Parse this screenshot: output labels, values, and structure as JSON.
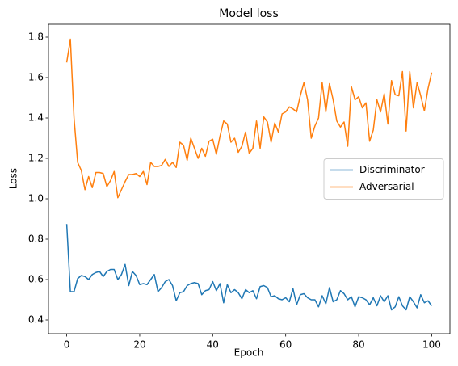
{
  "chart_data": {
    "type": "line",
    "title": "Model loss",
    "x_label": "Epoch",
    "y_label": "Loss",
    "x": [
      0,
      1,
      2,
      3,
      4,
      5,
      6,
      7,
      8,
      9,
      10,
      11,
      12,
      13,
      14,
      15,
      16,
      17,
      18,
      19,
      20,
      21,
      22,
      23,
      24,
      25,
      26,
      27,
      28,
      29,
      30,
      31,
      32,
      33,
      34,
      35,
      36,
      37,
      38,
      39,
      40,
      41,
      42,
      43,
      44,
      45,
      46,
      47,
      48,
      49,
      50,
      51,
      52,
      53,
      54,
      55,
      56,
      57,
      58,
      59,
      60,
      61,
      62,
      63,
      64,
      65,
      66,
      67,
      68,
      69,
      70,
      71,
      72,
      73,
      74,
      75,
      76,
      77,
      78,
      79,
      80,
      81,
      82,
      83,
      84,
      85,
      86,
      87,
      88,
      89,
      90,
      91,
      92,
      93,
      94,
      95,
      96,
      97,
      98,
      99,
      100
    ],
    "series": [
      {
        "name": "Discriminator",
        "color": "#1f77b4",
        "values": [
          0.875,
          0.54,
          0.54,
          0.605,
          0.62,
          0.615,
          0.6,
          0.625,
          0.635,
          0.64,
          0.615,
          0.64,
          0.65,
          0.65,
          0.6,
          0.625,
          0.675,
          0.57,
          0.64,
          0.62,
          0.575,
          0.58,
          0.575,
          0.6,
          0.625,
          0.54,
          0.56,
          0.59,
          0.6,
          0.57,
          0.495,
          0.535,
          0.54,
          0.57,
          0.58,
          0.585,
          0.58,
          0.525,
          0.545,
          0.55,
          0.59,
          0.545,
          0.58,
          0.485,
          0.575,
          0.535,
          0.55,
          0.535,
          0.505,
          0.55,
          0.535,
          0.545,
          0.505,
          0.565,
          0.57,
          0.56,
          0.515,
          0.52,
          0.505,
          0.5,
          0.51,
          0.49,
          0.555,
          0.475,
          0.525,
          0.53,
          0.51,
          0.5,
          0.5,
          0.465,
          0.52,
          0.48,
          0.56,
          0.49,
          0.5,
          0.545,
          0.53,
          0.5,
          0.515,
          0.465,
          0.515,
          0.51,
          0.5,
          0.475,
          0.51,
          0.47,
          0.52,
          0.49,
          0.52,
          0.45,
          0.465,
          0.515,
          0.47,
          0.45,
          0.515,
          0.49,
          0.46,
          0.525,
          0.485,
          0.495,
          0.47
        ]
      },
      {
        "name": "Adversarial",
        "color": "#ff7f0e",
        "values": [
          1.675,
          1.79,
          1.4,
          1.18,
          1.14,
          1.045,
          1.11,
          1.055,
          1.13,
          1.13,
          1.125,
          1.06,
          1.09,
          1.135,
          1.005,
          1.045,
          1.085,
          1.12,
          1.12,
          1.125,
          1.11,
          1.135,
          1.07,
          1.18,
          1.16,
          1.16,
          1.165,
          1.195,
          1.16,
          1.18,
          1.155,
          1.28,
          1.265,
          1.19,
          1.3,
          1.25,
          1.2,
          1.25,
          1.21,
          1.285,
          1.295,
          1.22,
          1.31,
          1.385,
          1.37,
          1.28,
          1.3,
          1.23,
          1.26,
          1.33,
          1.225,
          1.25,
          1.385,
          1.25,
          1.405,
          1.38,
          1.28,
          1.375,
          1.33,
          1.42,
          1.43,
          1.455,
          1.445,
          1.43,
          1.51,
          1.575,
          1.49,
          1.3,
          1.36,
          1.4,
          1.575,
          1.43,
          1.57,
          1.49,
          1.385,
          1.355,
          1.38,
          1.26,
          1.555,
          1.49,
          1.505,
          1.45,
          1.475,
          1.285,
          1.34,
          1.49,
          1.43,
          1.52,
          1.37,
          1.585,
          1.515,
          1.51,
          1.63,
          1.335,
          1.63,
          1.45,
          1.575,
          1.51,
          1.435,
          1.545,
          1.625
        ]
      }
    ],
    "xlim": [
      -5,
      105
    ],
    "xticks": [
      0,
      20,
      40,
      60,
      80,
      100
    ],
    "ylim": [
      0.332,
      1.864
    ],
    "yticks": [
      0.4,
      0.6,
      0.8,
      {
        "value": 1,
        "label": "1.0"
      },
      1.2,
      1.4,
      1.6,
      1.8
    ],
    "grid": false,
    "legend": "center right"
  }
}
